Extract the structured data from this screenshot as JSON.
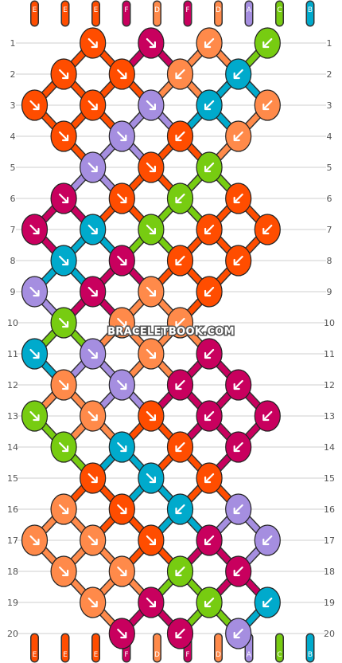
{
  "watermark": "BRACELETBOOK.COM",
  "row_labels": [
    "1",
    "2",
    "3",
    "4",
    "5",
    "6",
    "7",
    "8",
    "9",
    "10",
    "11",
    "12",
    "13",
    "14",
    "15",
    "16",
    "17",
    "18",
    "19",
    "20"
  ],
  "colors": {
    "E": "#ff4d00",
    "F": "#c8005e",
    "D": "#ff8a4a",
    "A": "#a58ee0",
    "C": "#77cc11",
    "B": "#00aacc"
  },
  "top_strands": [
    "E",
    "E",
    "E",
    "F",
    "D",
    "F",
    "D",
    "A",
    "C",
    "B"
  ],
  "bottom_strands": [
    "E",
    "E",
    "E",
    "F",
    "D",
    "F",
    "D",
    "A",
    "C",
    "B"
  ],
  "knots": [
    [
      "",
      "",
      "E",
      "",
      "F",
      "",
      "D",
      "",
      "C",
      ""
    ],
    [
      "",
      "E",
      "",
      "E",
      "",
      "D",
      "",
      "B",
      "",
      ""
    ],
    [
      "E",
      "",
      "E",
      "",
      "A",
      "",
      "B",
      "",
      "D",
      ""
    ],
    [
      "",
      "E",
      "",
      "A",
      "",
      "E",
      "",
      "D",
      "",
      ""
    ],
    [
      "",
      "",
      "A",
      "",
      "E",
      "",
      "C",
      "",
      "",
      ""
    ],
    [
      "",
      "F",
      "",
      "E",
      "",
      "C",
      "",
      "E",
      "",
      ""
    ],
    [
      "F",
      "",
      "B",
      "",
      "C",
      "",
      "E",
      "",
      "E",
      ""
    ],
    [
      "",
      "B",
      "",
      "F",
      "",
      "E",
      "",
      "E",
      "",
      ""
    ],
    [
      "A",
      "",
      "F",
      "",
      "D",
      "",
      "E",
      "",
      "",
      ""
    ],
    [
      "",
      "C",
      "",
      "D",
      "",
      "D",
      "",
      "",
      "",
      ""
    ],
    [
      "B",
      "",
      "A",
      "",
      "D",
      "",
      "F",
      "",
      "",
      ""
    ],
    [
      "",
      "D",
      "",
      "A",
      "",
      "F",
      "",
      "F",
      "",
      ""
    ],
    [
      "C",
      "",
      "D",
      "",
      "E",
      "",
      "F",
      "",
      "F",
      ""
    ],
    [
      "",
      "C",
      "",
      "B",
      "",
      "E",
      "",
      "F",
      "",
      ""
    ],
    [
      "",
      "",
      "E",
      "",
      "B",
      "",
      "E",
      "",
      "",
      ""
    ],
    [
      "",
      "D",
      "",
      "E",
      "",
      "B",
      "",
      "A",
      "",
      ""
    ],
    [
      "D",
      "",
      "D",
      "",
      "E",
      "",
      "F",
      "",
      "A",
      ""
    ],
    [
      "",
      "D",
      "",
      "D",
      "",
      "C",
      "",
      "F",
      "",
      ""
    ],
    [
      "",
      "",
      "D",
      "",
      "F",
      "",
      "C",
      "",
      "B",
      ""
    ],
    [
      "",
      "",
      "",
      "F",
      "",
      "F",
      "",
      "A",
      "",
      ""
    ]
  ]
}
